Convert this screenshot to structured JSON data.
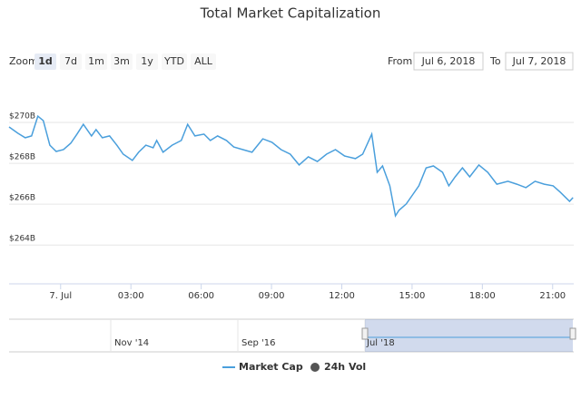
{
  "chart_data": {
    "type": "line",
    "title": "Total Market Capitalization",
    "range_selector": {
      "label": "Zoom",
      "buttons": [
        "1d",
        "7d",
        "1m",
        "3m",
        "1y",
        "YTD",
        "ALL"
      ],
      "selected": 0,
      "from_label": "From",
      "from": "Jul 6, 2018",
      "to_label": "To",
      "to": "Jul 7, 2018"
    },
    "x": [
      -2.2,
      -1.82,
      -1.51,
      -1.24,
      -0.97,
      -0.74,
      -0.46,
      -0.19,
      0.12,
      0.43,
      0.7,
      0.97,
      1.32,
      1.51,
      1.78,
      2.09,
      2.4,
      2.67,
      3.06,
      3.33,
      3.64,
      3.95,
      4.1,
      4.37,
      4.76,
      5.15,
      5.42,
      5.73,
      6.12,
      6.39,
      6.7,
      7.08,
      7.39,
      7.78,
      8.17,
      8.63,
      9.02,
      9.41,
      9.8,
      10.18,
      10.57,
      10.96,
      11.35,
      11.73,
      12.12,
      12.58,
      12.89,
      13.28,
      13.51,
      13.74,
      14.05,
      14.29,
      14.44,
      14.75,
      15.02,
      15.29,
      15.6,
      15.91,
      16.3,
      16.57,
      16.84,
      17.15,
      17.46,
      17.85,
      18.23,
      18.62,
      19.09,
      19.47,
      19.86,
      20.25,
      20.64,
      21.02,
      21.33,
      21.72,
      21.87
    ],
    "series": [
      {
        "name": "Market Cap",
        "color": "#4a9fdc",
        "values": [
          269.78,
          269.47,
          269.25,
          269.34,
          270.31,
          270.09,
          268.89,
          268.58,
          268.67,
          268.98,
          269.43,
          269.91,
          269.34,
          269.65,
          269.25,
          269.34,
          268.89,
          268.45,
          268.14,
          268.54,
          268.89,
          268.76,
          269.12,
          268.54,
          268.89,
          269.12,
          269.91,
          269.34,
          269.43,
          269.12,
          269.34,
          269.12,
          268.8,
          268.67,
          268.54,
          269.2,
          269.03,
          268.67,
          268.45,
          267.92,
          268.32,
          268.09,
          268.45,
          268.67,
          268.36,
          268.23,
          268.45,
          269.43,
          267.56,
          267.87,
          266.9,
          265.43,
          265.7,
          266.01,
          266.45,
          266.9,
          267.78,
          267.87,
          267.56,
          266.9,
          267.34,
          267.78,
          267.34,
          267.92,
          267.56,
          266.98,
          267.12,
          266.98,
          266.81,
          267.12,
          266.98,
          266.9,
          266.58,
          266.14,
          266.32
        ]
      }
    ],
    "legend_extra": [
      {
        "name": "24h Vol",
        "color": "#555555"
      }
    ],
    "xlim": [
      -2.2,
      21.9
    ],
    "xticks": [
      {
        "value": 0,
        "label": "7. Jul"
      },
      {
        "value": 3,
        "label": "03:00"
      },
      {
        "value": 6,
        "label": "06:00"
      },
      {
        "value": 9,
        "label": "09:00"
      },
      {
        "value": 12,
        "label": "12:00"
      },
      {
        "value": 15,
        "label": "15:00"
      },
      {
        "value": 18,
        "label": "18:00"
      },
      {
        "value": 21,
        "label": "21:00"
      }
    ],
    "ylim": [
      262.1,
      272
    ],
    "yticks": [
      {
        "value": 264,
        "label": "$264B"
      },
      {
        "value": 266,
        "label": "$266B"
      },
      {
        "value": 268,
        "label": "$268B"
      },
      {
        "value": 270,
        "label": "$270B"
      }
    ],
    "grid": true,
    "navigator_labels": [
      "Nov '14",
      "Sep '16",
      "Jul '18"
    ]
  }
}
